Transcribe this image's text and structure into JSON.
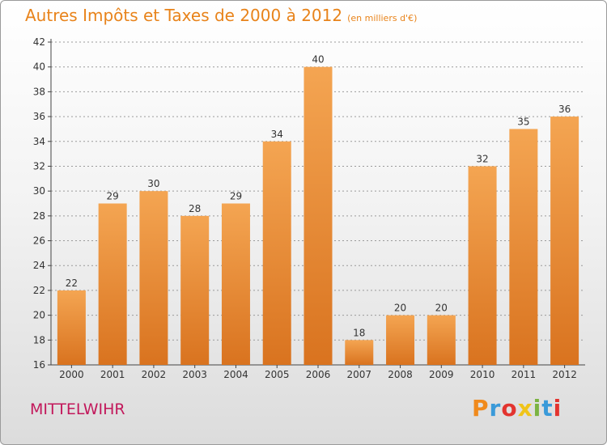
{
  "header": {
    "title": "Autres Impôts et Taxes de 2000 à 2012",
    "subtitle": "(en milliers d'€)"
  },
  "footer": {
    "commune": "MITTELWIHR",
    "logo_text": "Proxiti",
    "logo_colors": [
      "#f08a1c",
      "#3a9ad9",
      "#e3342f",
      "#f0c419",
      "#7bb342",
      "#3a9ad9",
      "#e3342f"
    ]
  },
  "colors": {
    "title": "#e8831a",
    "commune": "#c2185b",
    "bar_light": "#f4a552",
    "bar_dark": "#d9731f",
    "grid": "#9a9a9a"
  },
  "chart_data": {
    "type": "bar",
    "title": "Autres Impôts et Taxes de 2000 à 2012",
    "subtitle": "(en milliers d'€)",
    "categories": [
      "2000",
      "2001",
      "2002",
      "2003",
      "2004",
      "2005",
      "2006",
      "2007",
      "2008",
      "2009",
      "2010",
      "2011",
      "2012"
    ],
    "values": [
      22,
      29,
      30,
      28,
      29,
      34,
      40,
      18,
      20,
      20,
      32,
      35,
      36
    ],
    "ylim": [
      16,
      42
    ],
    "yticks": [
      16,
      18,
      20,
      22,
      24,
      26,
      28,
      30,
      32,
      34,
      36,
      38,
      40,
      42
    ],
    "grid": true,
    "grid_style": "dashed horizontal",
    "data_labels": true
  }
}
